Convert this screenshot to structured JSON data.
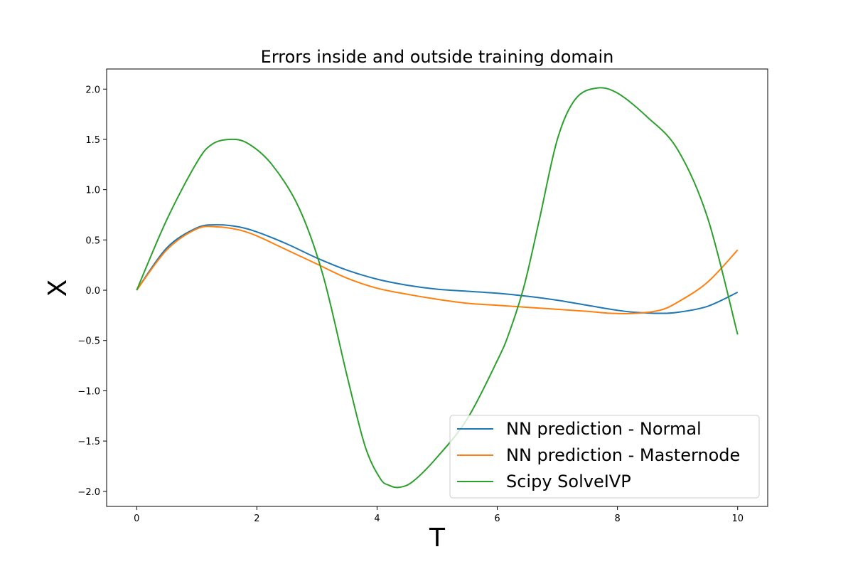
{
  "chart_data": {
    "type": "line",
    "title": "Errors inside and outside training domain",
    "xlabel": "T",
    "ylabel": "X",
    "xlim": [
      -0.5,
      10.5
    ],
    "ylim": [
      -2.15,
      2.2
    ],
    "xticks": [
      0,
      2,
      4,
      6,
      8,
      10
    ],
    "yticks": [
      -2.0,
      -1.5,
      -1.0,
      -0.5,
      0.0,
      0.5,
      1.0,
      1.5,
      2.0
    ],
    "grid": false,
    "legend_position": "lower-right",
    "series": [
      {
        "name": "NN prediction - Normal",
        "color": "#1f77b4",
        "x": [
          0,
          0.5,
          1.0,
          1.35,
          1.7,
          2.0,
          2.5,
          3.0,
          3.5,
          4.0,
          4.5,
          5.0,
          5.5,
          6.0,
          6.5,
          7.0,
          7.5,
          8.0,
          8.3,
          8.7,
          9.0,
          9.5,
          10.0
        ],
        "y": [
          0.0,
          0.42,
          0.62,
          0.65,
          0.63,
          0.58,
          0.46,
          0.32,
          0.2,
          0.11,
          0.05,
          0.01,
          -0.01,
          -0.03,
          -0.06,
          -0.1,
          -0.15,
          -0.2,
          -0.22,
          -0.23,
          -0.22,
          -0.16,
          -0.02
        ]
      },
      {
        "name": "NN prediction - Masternode",
        "color": "#ff7f0e",
        "x": [
          0,
          0.5,
          1.0,
          1.35,
          1.7,
          2.0,
          2.5,
          3.0,
          3.5,
          4.0,
          4.5,
          5.0,
          5.5,
          6.0,
          6.5,
          7.0,
          7.5,
          7.9,
          8.3,
          8.7,
          9.0,
          9.5,
          10.0
        ],
        "y": [
          0.0,
          0.4,
          0.61,
          0.63,
          0.6,
          0.54,
          0.4,
          0.26,
          0.12,
          0.02,
          -0.04,
          -0.09,
          -0.13,
          -0.15,
          -0.17,
          -0.19,
          -0.21,
          -0.23,
          -0.23,
          -0.2,
          -0.12,
          0.08,
          0.4
        ]
      },
      {
        "name": "Scipy SolveIVP",
        "color": "#2ca02c",
        "x": [
          0,
          0.5,
          1.0,
          1.25,
          1.55,
          1.85,
          2.25,
          2.7,
          3.1,
          3.5,
          3.8,
          4.05,
          4.2,
          4.37,
          4.6,
          5.0,
          5.5,
          6.0,
          6.2,
          6.45,
          6.7,
          7.0,
          7.3,
          7.65,
          8.0,
          8.5,
          9.0,
          9.5,
          10.0
        ],
        "y": [
          0.0,
          0.7,
          1.27,
          1.45,
          1.5,
          1.46,
          1.25,
          0.82,
          0.15,
          -0.85,
          -1.55,
          -1.87,
          -1.94,
          -1.96,
          -1.9,
          -1.66,
          -1.28,
          -0.7,
          -0.42,
          0.05,
          0.7,
          1.5,
          1.9,
          2.01,
          1.96,
          1.72,
          1.4,
          0.72,
          -0.44
        ]
      }
    ]
  }
}
